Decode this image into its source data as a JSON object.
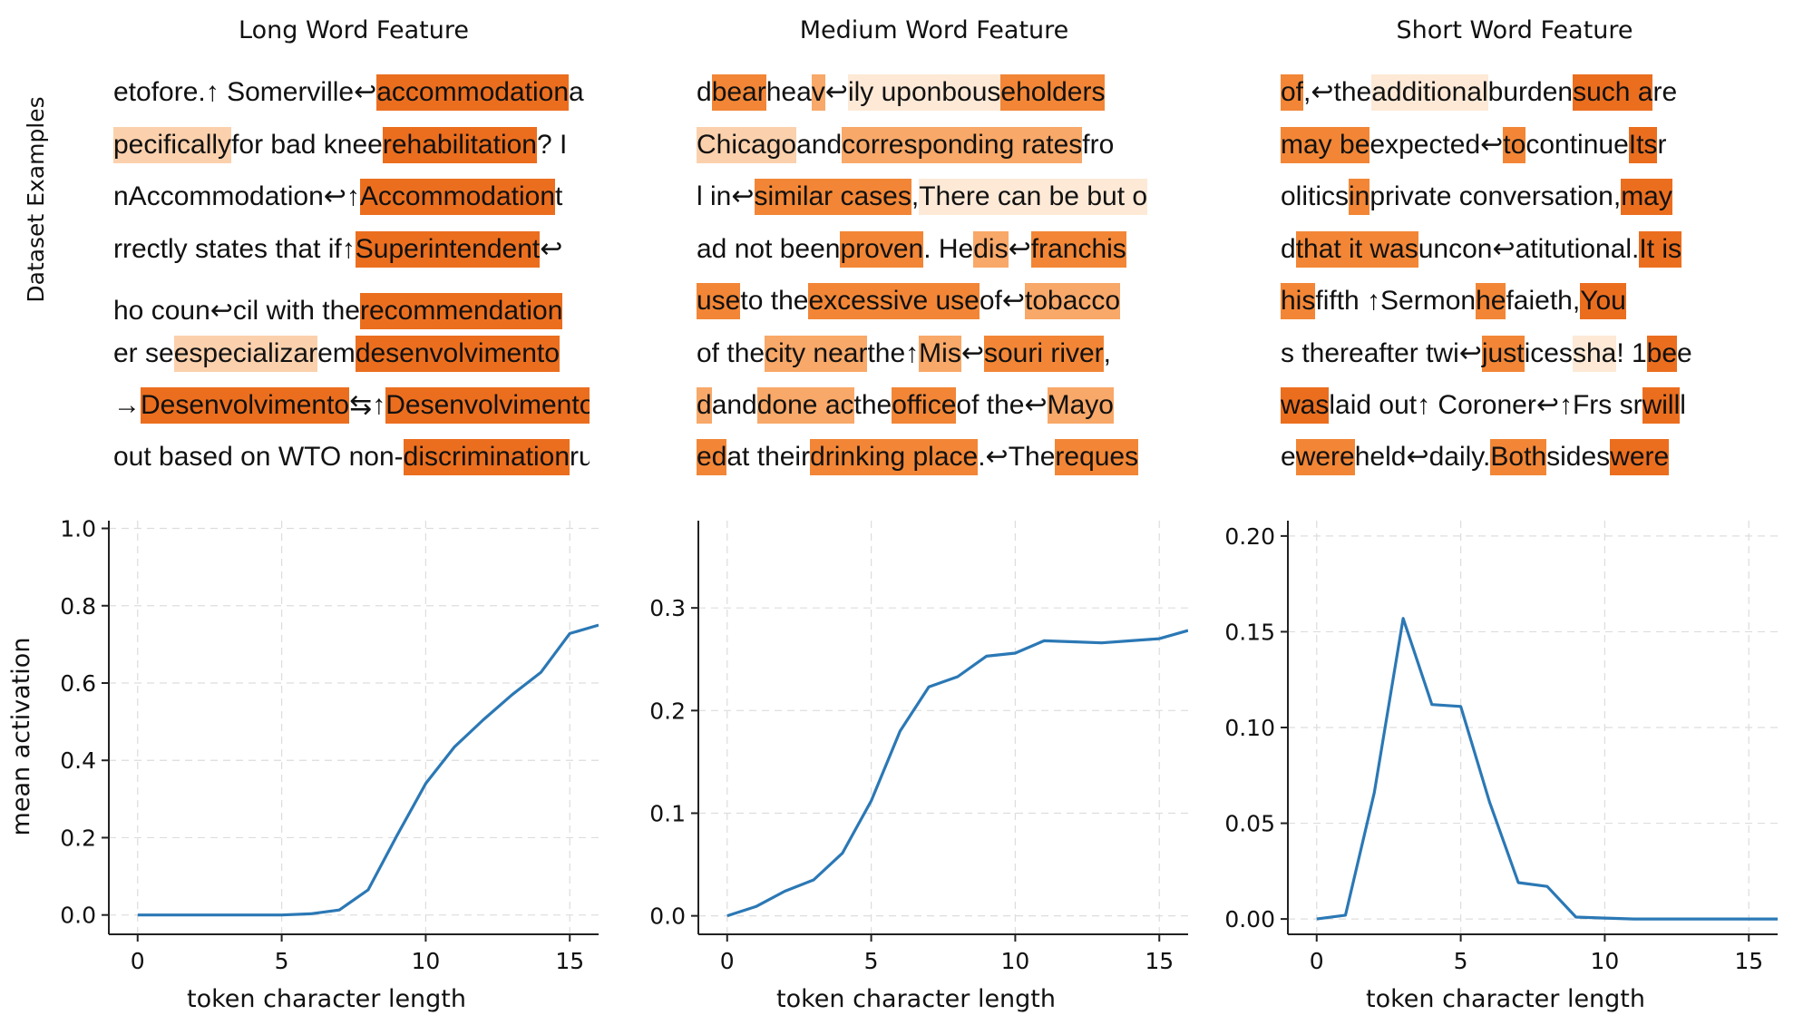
{
  "side_label": "Dataset Examples",
  "panels": [
    {
      "title": "Long Word Feature",
      "examples": [
        [
          [
            "etofore.↑ Somerville↩",
            0
          ],
          [
            "accommodation",
            5
          ],
          [
            " a",
            0
          ]
        ],
        [
          [
            "pecifically",
            2
          ],
          [
            " for bad knee ",
            0
          ],
          [
            "rehabilitation",
            5
          ],
          [
            "? I",
            0
          ]
        ],
        [
          [
            "nAccommodation↩↑",
            0
          ],
          [
            "Accommodation",
            5
          ],
          [
            " t",
            0
          ]
        ],
        [
          [
            "rrectly states that if↑ ",
            0
          ],
          [
            "Superintendent",
            5
          ],
          [
            "↩",
            0
          ]
        ],
        [
          [
            "ho coun↩cil with the ",
            0
          ],
          [
            "recommendation",
            5
          ],
          [
            "",
            0
          ]
        ],
        [
          [
            "er se ",
            0
          ],
          [
            "especializar",
            2
          ],
          [
            " em ",
            0
          ],
          [
            "desenvolvimento",
            5
          ]
        ],
        [
          [
            "→",
            0
          ],
          [
            "Desenvolvimento",
            5
          ],
          [
            "⇆↑",
            0
          ],
          [
            "Desenvolvimento",
            5
          ],
          [
            "s",
            0
          ]
        ],
        [
          [
            "out based on WTO non-",
            0
          ],
          [
            "discrimination",
            5
          ],
          [
            " ru",
            0
          ]
        ]
      ]
    },
    {
      "title": "Medium Word Feature",
      "examples": [
        [
          [
            "d ",
            0
          ],
          [
            "bear",
            4
          ],
          [
            " hea",
            0
          ],
          [
            "v",
            3
          ],
          [
            "↩",
            0
          ],
          [
            "ily upon ",
            1
          ],
          [
            "bous",
            1
          ],
          [
            "eholders",
            4
          ]
        ],
        [
          [
            "Chicago",
            2
          ],
          [
            " and ",
            0
          ],
          [
            "corresponding rates",
            3
          ],
          [
            " fro",
            0
          ]
        ],
        [
          [
            "l in↩",
            0
          ],
          [
            "similar cases",
            4
          ],
          [
            ", ",
            0
          ],
          [
            "There can be but o",
            1
          ]
        ],
        [
          [
            "ad not been ",
            0
          ],
          [
            "proven",
            4
          ],
          [
            ". He ",
            0
          ],
          [
            "dis",
            3
          ],
          [
            "↩",
            0
          ],
          [
            "franchis",
            4
          ]
        ],
        [
          [
            "use",
            4
          ],
          [
            " to the ",
            0
          ],
          [
            "excessive use",
            4
          ],
          [
            " of↩",
            0
          ],
          [
            "tobacco",
            3
          ]
        ],
        [
          [
            "of the ",
            0
          ],
          [
            "city near",
            3
          ],
          [
            " the↑ ",
            0
          ],
          [
            "Mis",
            3
          ],
          [
            "↩",
            0
          ],
          [
            "souri river",
            4
          ],
          [
            ",",
            0
          ]
        ],
        [
          [
            "d",
            3
          ],
          [
            " and ",
            0
          ],
          [
            "done ac",
            3
          ],
          [
            " the ",
            0
          ],
          [
            "office",
            4
          ],
          [
            " of the↩",
            0
          ],
          [
            "Mayo",
            3
          ]
        ],
        [
          [
            "ed",
            4
          ],
          [
            " at their ",
            0
          ],
          [
            "drinking place",
            4
          ],
          [
            ".↩The ",
            0
          ],
          [
            "reques",
            4
          ]
        ]
      ]
    },
    {
      "title": "Short Word Feature",
      "examples": [
        [
          [
            "of",
            4
          ],
          [
            ",↩the ",
            0
          ],
          [
            "additional",
            1
          ],
          [
            " burden ",
            0
          ],
          [
            "such a",
            5
          ],
          [
            " re",
            0
          ]
        ],
        [
          [
            "may be",
            4
          ],
          [
            " expected↩",
            0
          ],
          [
            "to",
            4
          ],
          [
            " continue ",
            0
          ],
          [
            "Its",
            5
          ],
          [
            " r",
            0
          ]
        ],
        [
          [
            "olitics ",
            0
          ],
          [
            "in",
            4
          ],
          [
            " private conversation, ",
            0
          ],
          [
            "may",
            5
          ]
        ],
        [
          [
            "d ",
            0
          ],
          [
            "that it was",
            4
          ],
          [
            " uncon↩atitutional. ",
            0
          ],
          [
            "It is",
            5
          ]
        ],
        [
          [
            "his",
            4
          ],
          [
            " fifth ↑Sermon ",
            0
          ],
          [
            "he",
            4
          ],
          [
            " faieth, ",
            0
          ],
          [
            "You",
            5
          ]
        ],
        [
          [
            "s thereafter twi↩",
            0
          ],
          [
            "just",
            4
          ],
          [
            " ices ",
            0
          ],
          [
            "sha",
            1
          ],
          [
            "! 1 ",
            0
          ],
          [
            "be",
            5
          ],
          [
            " e",
            0
          ]
        ],
        [
          [
            "was",
            5
          ],
          [
            " laid out↑ Coroner↩↑Frs sr ",
            0
          ],
          [
            "will",
            5
          ],
          [
            " l",
            0
          ]
        ],
        [
          [
            "e ",
            0
          ],
          [
            "were",
            4
          ],
          [
            " held↩daily. ",
            0
          ],
          [
            "Both",
            4
          ],
          [
            " sides ",
            0
          ],
          [
            "were",
            5
          ]
        ]
      ]
    }
  ],
  "colors": {
    "levels": [
      "#ffffff",
      "#fde9d6",
      "#fbd1ad",
      "#f8a868",
      "#f28636",
      "#eb6e1f"
    ],
    "line": "#2b78b5",
    "grid": "#dddddd"
  },
  "chart_data": [
    {
      "type": "line",
      "title": "",
      "xlabel": "token character length",
      "ylabel": "mean activation",
      "xlim": [
        -1,
        16
      ],
      "ylim": [
        -0.05,
        1.02
      ],
      "xticks": [
        0,
        5,
        10,
        15
      ],
      "yticks": [
        0.0,
        0.2,
        0.4,
        0.6,
        0.8,
        1.0
      ],
      "yticklabels": [
        "0.0",
        "0.2",
        "0.4",
        "0.6",
        "0.8",
        "1.0"
      ],
      "grid": true,
      "x": [
        0,
        1,
        2,
        3,
        4,
        5,
        6,
        7,
        8,
        9,
        10,
        11,
        12,
        13,
        14,
        15,
        16
      ],
      "y": [
        0.0,
        0.0,
        0.0,
        0.0,
        0.0,
        0.0,
        0.003,
        0.013,
        0.065,
        0.205,
        0.34,
        0.435,
        0.505,
        0.57,
        0.628,
        0.728,
        0.75
      ]
    },
    {
      "type": "line",
      "title": "",
      "xlabel": "token character length",
      "ylabel": "",
      "xlim": [
        -1,
        16
      ],
      "ylim": [
        -0.018,
        0.385
      ],
      "xticks": [
        0,
        5,
        10,
        15
      ],
      "yticks": [
        0.0,
        0.1,
        0.2,
        0.3
      ],
      "yticklabels": [
        "0.0",
        "0.1",
        "0.2",
        "0.3"
      ],
      "grid": true,
      "x": [
        0,
        1,
        2,
        3,
        4,
        5,
        6,
        7,
        8,
        9,
        10,
        11,
        12,
        13,
        14,
        15,
        16
      ],
      "y": [
        0.0,
        0.009,
        0.024,
        0.035,
        0.061,
        0.112,
        0.18,
        0.223,
        0.233,
        0.253,
        0.256,
        0.268,
        0.267,
        0.266,
        0.268,
        0.27,
        0.278
      ]
    },
    {
      "type": "line",
      "title": "",
      "xlabel": "token character length",
      "ylabel": "",
      "xlim": [
        -1,
        16
      ],
      "ylim": [
        -0.008,
        0.208
      ],
      "xticks": [
        0,
        5,
        10,
        15
      ],
      "yticks": [
        0.0,
        0.05,
        0.1,
        0.15,
        0.2
      ],
      "yticklabels": [
        "0.00",
        "0.05",
        "0.10",
        "0.15",
        "0.20"
      ],
      "grid": true,
      "x": [
        0,
        1,
        2,
        3,
        4,
        5,
        6,
        7,
        8,
        9,
        10,
        11,
        12,
        13,
        14,
        15,
        16
      ],
      "y": [
        0.0,
        0.002,
        0.066,
        0.157,
        0.112,
        0.111,
        0.061,
        0.019,
        0.017,
        0.001,
        0.0005,
        0.0,
        0.0,
        0.0,
        0.0,
        0.0,
        0.0
      ]
    }
  ]
}
